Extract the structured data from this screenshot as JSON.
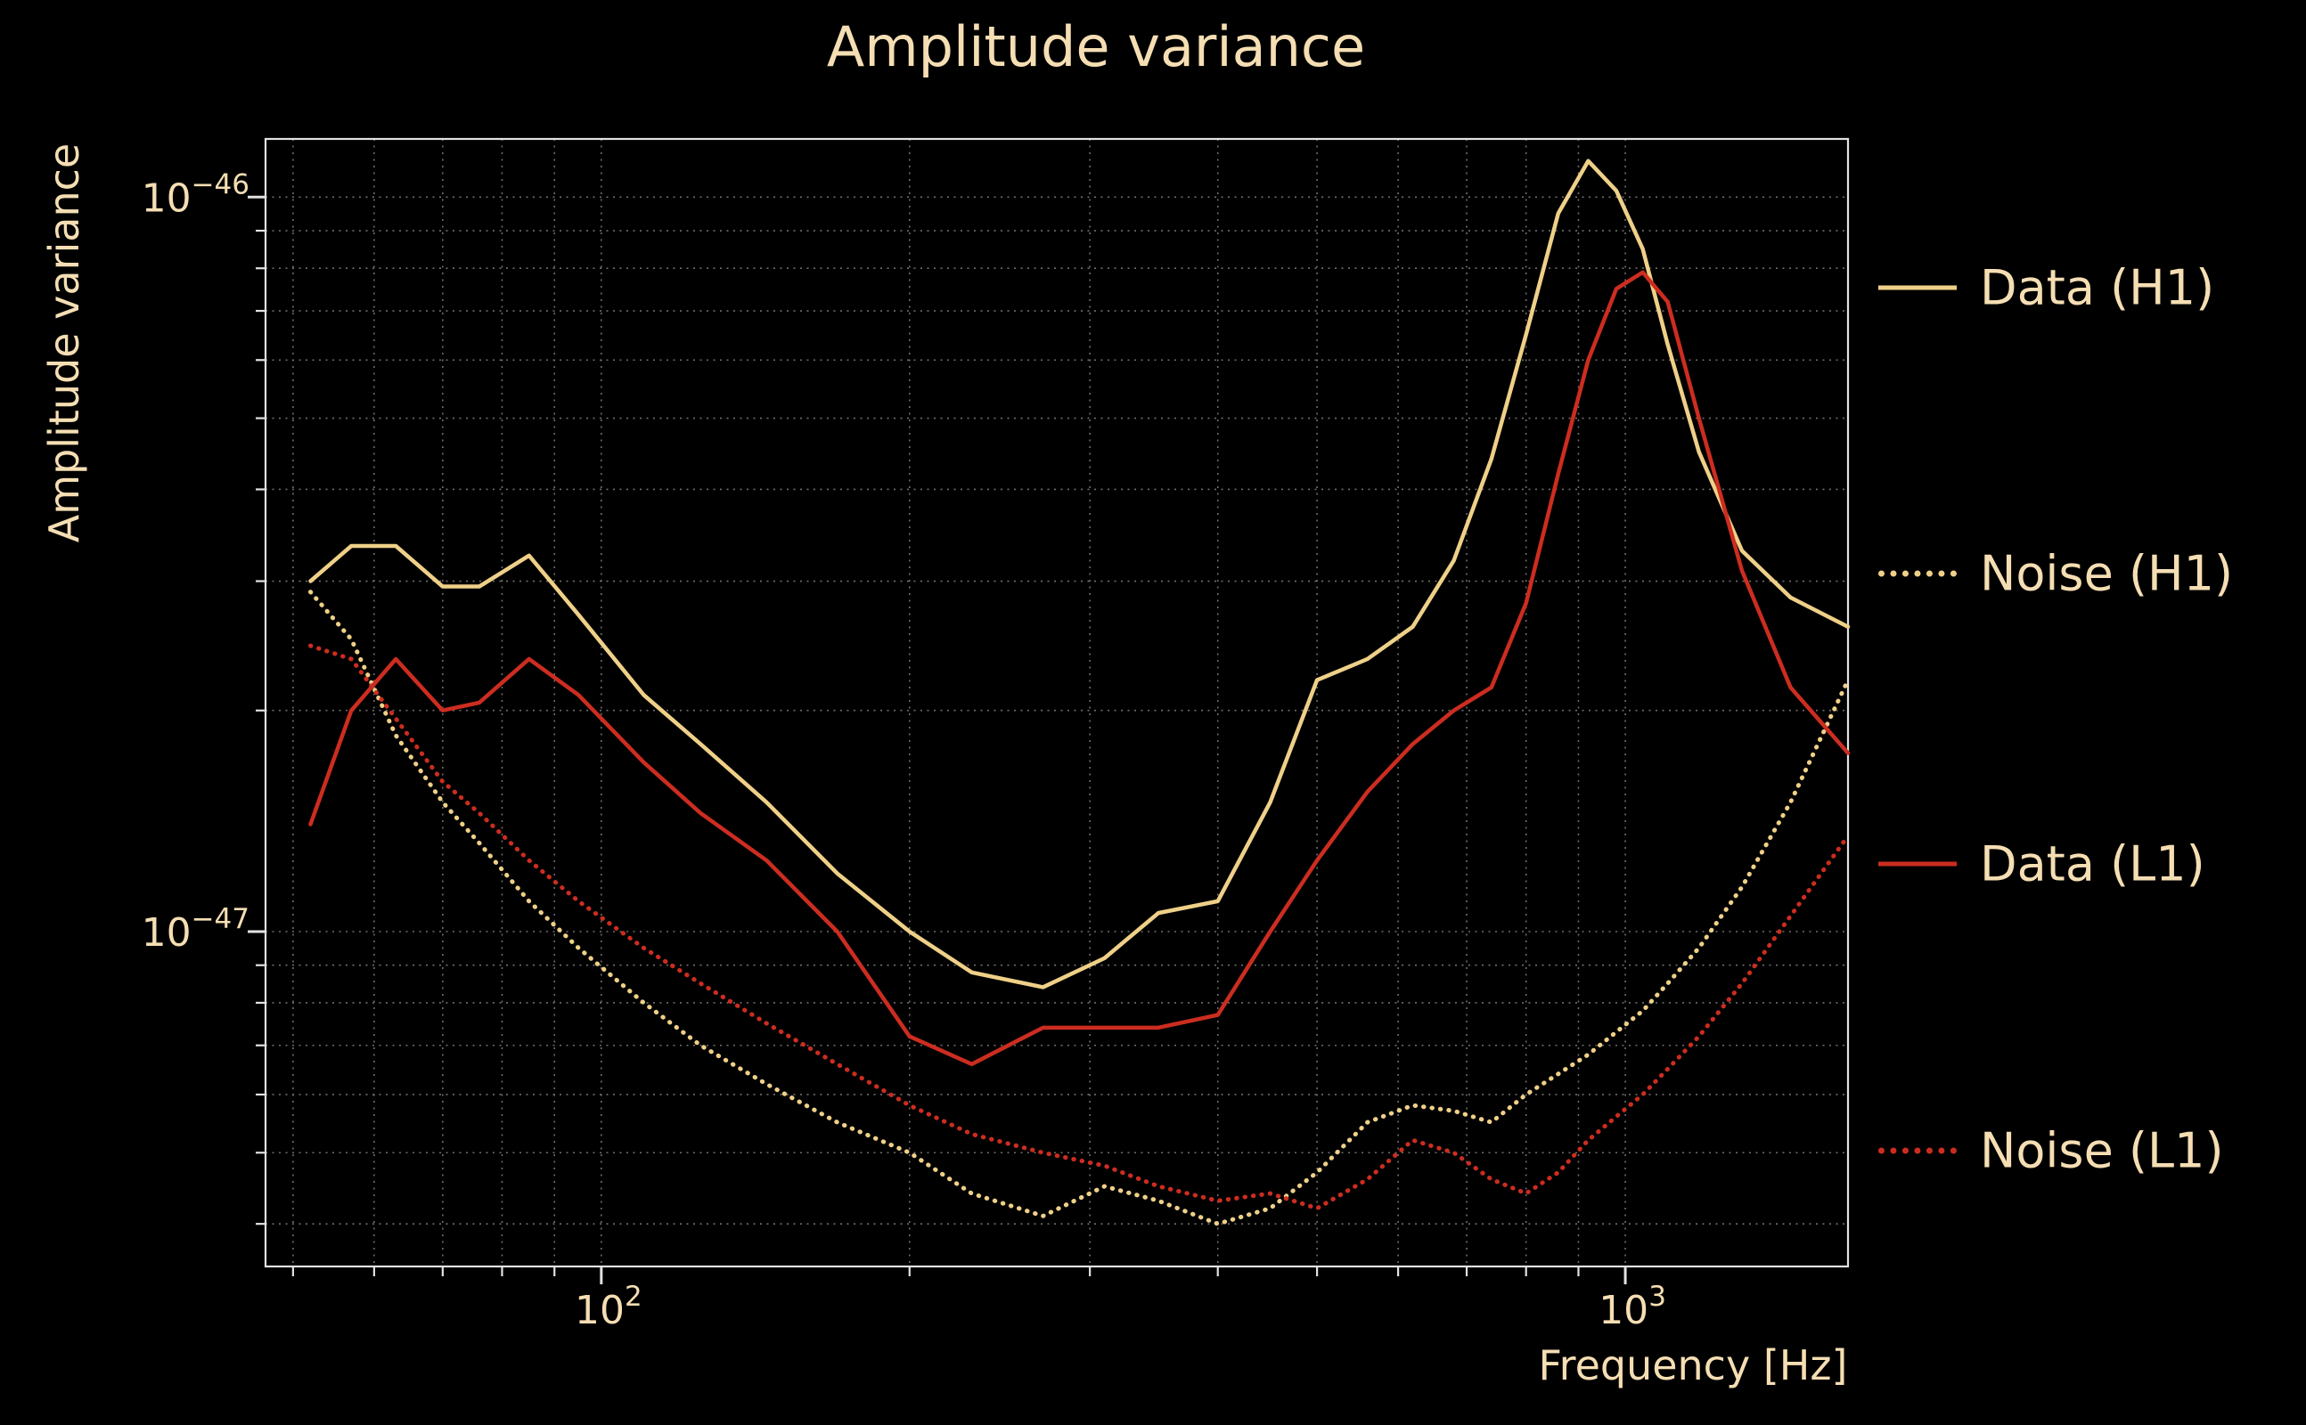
{
  "colors": {
    "background": "#000000",
    "text": "#f5deb3",
    "h1": "#efd088",
    "l1": "#cc2d20",
    "grid": "#c9c9c9",
    "spine": "#e2e2e2"
  },
  "chart_data": {
    "type": "line",
    "title": "Amplitude variance",
    "xlabel": "Frequency [Hz]",
    "ylabel": "Amplitude variance",
    "x_scale": "log",
    "y_scale": "log",
    "grid": true,
    "legend_position": "right-outside",
    "xlim": [
      47,
      1650
    ],
    "ylim": [
      3.5e-48,
      1.2e-46
    ],
    "x_ticks": [
      {
        "value": 100,
        "base": "10",
        "exp": "2"
      },
      {
        "value": 1000,
        "base": "10",
        "exp": "3"
      }
    ],
    "y_ticks": [
      {
        "value": 1e-46,
        "base": "10",
        "exp": "−46"
      },
      {
        "value": 1e-47,
        "base": "10",
        "exp": "−47"
      }
    ],
    "value_scale": 1e-47,
    "x": [
      52,
      57,
      63,
      70,
      76,
      85,
      95,
      110,
      125,
      145,
      170,
      200,
      230,
      270,
      310,
      350,
      400,
      450,
      500,
      560,
      620,
      680,
      740,
      800,
      860,
      920,
      980,
      1040,
      1100,
      1180,
      1300,
      1450,
      1650
    ],
    "series": [
      {
        "id": "data-h1",
        "name": "Data (H1)",
        "color": "#efd088",
        "style": "solid",
        "values": [
          3.0,
          3.35,
          3.35,
          2.95,
          2.95,
          3.25,
          2.7,
          2.1,
          1.8,
          1.5,
          1.2,
          1.0,
          0.88,
          0.84,
          0.92,
          1.06,
          1.1,
          1.5,
          2.2,
          2.35,
          2.6,
          3.2,
          4.4,
          6.5,
          9.5,
          11.2,
          10.2,
          8.5,
          6.3,
          4.5,
          3.3,
          2.85,
          2.6
        ]
      },
      {
        "id": "noise-h1",
        "name": "Noise (H1)",
        "color": "#efd088",
        "style": "dotted",
        "values": [
          2.9,
          2.5,
          1.85,
          1.5,
          1.32,
          1.1,
          0.95,
          0.8,
          0.7,
          0.62,
          0.55,
          0.5,
          0.44,
          0.41,
          0.45,
          0.43,
          0.4,
          0.42,
          0.47,
          0.55,
          0.58,
          0.57,
          0.55,
          0.6,
          0.64,
          0.68,
          0.73,
          0.78,
          0.85,
          0.95,
          1.15,
          1.5,
          2.2
        ]
      },
      {
        "id": "data-l1",
        "name": "Data (L1)",
        "color": "#cc2d20",
        "style": "solid",
        "values": [
          1.4,
          2.0,
          2.35,
          2.0,
          2.05,
          2.35,
          2.1,
          1.7,
          1.45,
          1.25,
          1.0,
          0.72,
          0.66,
          0.74,
          0.74,
          0.74,
          0.77,
          1.0,
          1.25,
          1.55,
          1.8,
          2.0,
          2.15,
          2.8,
          4.2,
          6.0,
          7.5,
          7.9,
          7.2,
          5.0,
          3.1,
          2.15,
          1.75
        ]
      },
      {
        "id": "noise-l1",
        "name": "Noise (L1)",
        "color": "#cc2d20",
        "style": "dotted",
        "values": [
          2.45,
          2.35,
          1.95,
          1.6,
          1.45,
          1.25,
          1.1,
          0.95,
          0.85,
          0.75,
          0.66,
          0.58,
          0.53,
          0.5,
          0.48,
          0.45,
          0.43,
          0.44,
          0.42,
          0.46,
          0.52,
          0.5,
          0.46,
          0.44,
          0.47,
          0.52,
          0.56,
          0.6,
          0.65,
          0.72,
          0.85,
          1.05,
          1.35
        ]
      }
    ],
    "legend": [
      {
        "label": "Data (H1)",
        "color": "#efd088",
        "style": "solid"
      },
      {
        "label": "Noise (H1)",
        "color": "#efd088",
        "style": "dotted"
      },
      {
        "label": "Data (L1)",
        "color": "#cc2d20",
        "style": "solid"
      },
      {
        "label": "Noise (L1)",
        "color": "#cc2d20",
        "style": "dotted"
      }
    ]
  }
}
